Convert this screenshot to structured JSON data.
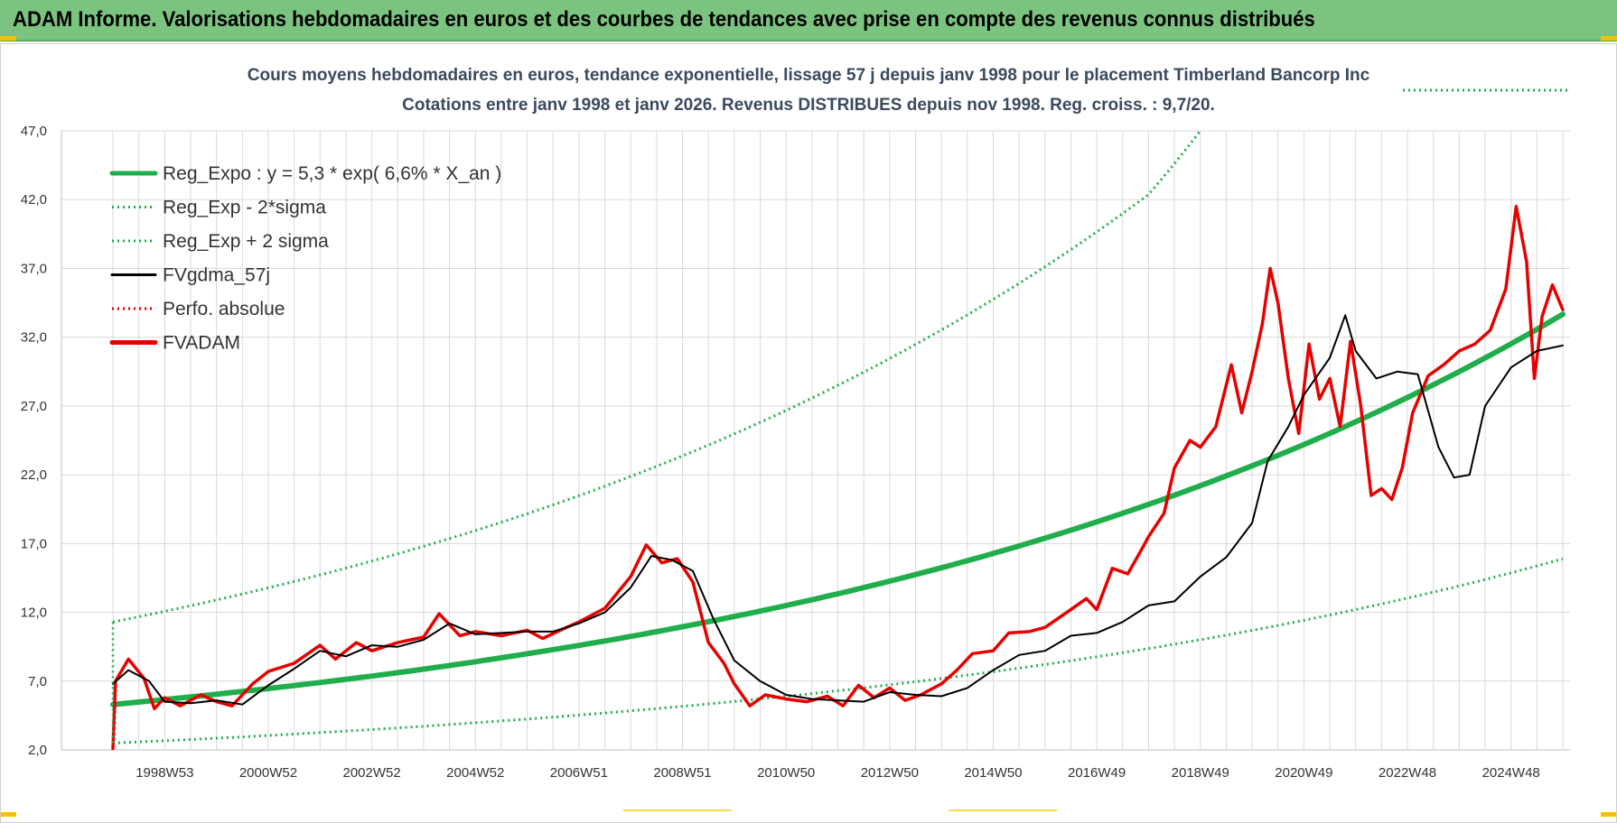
{
  "header": {
    "title": "ADAM Informe. Valorisations hebdomadaires en euros et des courbes de tendances avec prise en compte des revenus connus distribués"
  },
  "colors": {
    "banner": "#7ac47f",
    "reg_expo": "#1fae4b",
    "sigma": "#1fae4b",
    "fvgdma": "#000000",
    "perfo": "#e00000",
    "fvadam": "#e60000",
    "grid": "#d9d9d9"
  },
  "chart_data": {
    "type": "line",
    "title": "Cours moyens hebdomadaires en euros, tendance exponentielle, lissage 57 j depuis janv 1998 pour le placement Timberland Bancorp Inc",
    "subtitle": "Cotations entre janv 1998 et janv 2026. Revenus DISTRIBUES depuis nov 1998. Reg. croiss. : 9,7/20.",
    "xlabel": "",
    "ylabel": "",
    "x_range_years": [
      1998.0,
      2026.0
    ],
    "ylim": [
      2.0,
      47.0
    ],
    "y_ticks": [
      "2,0",
      "7,0",
      "12,0",
      "17,0",
      "22,0",
      "27,0",
      "32,0",
      "37,0",
      "42,0",
      "47,0"
    ],
    "y_tick_values": [
      2,
      7,
      12,
      17,
      22,
      27,
      32,
      37,
      42,
      47
    ],
    "x_ticks": [
      "1998W53",
      "2000W52",
      "2002W52",
      "2004W52",
      "2006W51",
      "2008W51",
      "2010W50",
      "2012W50",
      "2014W50",
      "2016W49",
      "2018W49",
      "2020W49",
      "2022W48",
      "2024W48"
    ],
    "x_tick_years": [
      1999.0,
      2001.0,
      2003.0,
      2005.0,
      2007.0,
      2009.0,
      2011.0,
      2013.0,
      2015.0,
      2017.0,
      2019.0,
      2021.0,
      2023.0,
      2025.0
    ],
    "grid": true,
    "legend_position": "top-left",
    "series": [
      {
        "name": "Reg_Expo : y = 5,3 * exp( 6,6% *  X_an )",
        "style": "solid-thick",
        "points": [
          [
            1998.0,
            5.3
          ],
          [
            2000.0,
            6.05
          ],
          [
            2002.0,
            6.9
          ],
          [
            2004.0,
            7.87
          ],
          [
            2006.0,
            8.99
          ],
          [
            2008.0,
            10.25
          ],
          [
            2010.0,
            11.7
          ],
          [
            2012.0,
            13.35
          ],
          [
            2014.0,
            15.24
          ],
          [
            2016.0,
            17.39
          ],
          [
            2018.0,
            19.85
          ],
          [
            2020.0,
            22.65
          ],
          [
            2022.0,
            25.85
          ],
          [
            2024.0,
            29.5
          ],
          [
            2026.0,
            33.67
          ]
        ]
      },
      {
        "name": "Reg_Exp - 2*sigma",
        "style": "dotted",
        "points": [
          [
            1998.0,
            2.5
          ],
          [
            2000.0,
            2.85
          ],
          [
            2002.0,
            3.26
          ],
          [
            2004.0,
            3.72
          ],
          [
            2006.0,
            4.24
          ],
          [
            2008.0,
            4.84
          ],
          [
            2010.0,
            5.52
          ],
          [
            2012.0,
            6.3
          ],
          [
            2014.0,
            7.19
          ],
          [
            2016.0,
            8.21
          ],
          [
            2018.0,
            9.37
          ],
          [
            2020.0,
            10.69
          ],
          [
            2022.0,
            12.2
          ],
          [
            2024.0,
            13.92
          ],
          [
            2026.0,
            15.89
          ]
        ]
      },
      {
        "name": "Reg_Exp + 2 sigma",
        "style": "dotted",
        "points": [
          [
            1998.0,
            11.3
          ],
          [
            2000.0,
            12.9
          ],
          [
            2002.0,
            14.72
          ],
          [
            2004.0,
            16.8
          ],
          [
            2006.0,
            19.17
          ],
          [
            2008.0,
            21.88
          ],
          [
            2010.0,
            24.97
          ],
          [
            2012.0,
            28.5
          ],
          [
            2014.0,
            32.53
          ],
          [
            2016.0,
            37.12
          ],
          [
            2018.0,
            42.37
          ],
          [
            2019.0,
            47.0
          ]
        ]
      },
      {
        "name": "FVgdma_57j",
        "style": "solid",
        "points": [
          [
            1998.0,
            6.8
          ],
          [
            1998.3,
            7.8
          ],
          [
            1998.7,
            7.0
          ],
          [
            1999.0,
            5.5
          ],
          [
            1999.5,
            5.4
          ],
          [
            2000.0,
            5.6
          ],
          [
            2000.5,
            5.3
          ],
          [
            2001.0,
            6.7
          ],
          [
            2001.5,
            7.9
          ],
          [
            2002.0,
            9.2
          ],
          [
            2002.5,
            8.8
          ],
          [
            2003.0,
            9.6
          ],
          [
            2003.5,
            9.5
          ],
          [
            2004.0,
            10.0
          ],
          [
            2004.5,
            11.2
          ],
          [
            2005.0,
            10.4
          ],
          [
            2005.5,
            10.5
          ],
          [
            2006.0,
            10.6
          ],
          [
            2006.5,
            10.6
          ],
          [
            2007.0,
            11.2
          ],
          [
            2007.5,
            12.0
          ],
          [
            2008.0,
            13.8
          ],
          [
            2008.4,
            16.1
          ],
          [
            2008.8,
            15.8
          ],
          [
            2009.2,
            15.0
          ],
          [
            2009.6,
            11.5
          ],
          [
            2010.0,
            8.5
          ],
          [
            2010.5,
            7.0
          ],
          [
            2011.0,
            6.0
          ],
          [
            2011.5,
            5.7
          ],
          [
            2012.0,
            5.6
          ],
          [
            2012.5,
            5.5
          ],
          [
            2013.0,
            6.2
          ],
          [
            2013.5,
            6.0
          ],
          [
            2014.0,
            5.9
          ],
          [
            2014.5,
            6.5
          ],
          [
            2015.0,
            7.8
          ],
          [
            2015.5,
            8.9
          ],
          [
            2016.0,
            9.2
          ],
          [
            2016.5,
            10.3
          ],
          [
            2017.0,
            10.5
          ],
          [
            2017.5,
            11.3
          ],
          [
            2018.0,
            12.5
          ],
          [
            2018.5,
            12.8
          ],
          [
            2019.0,
            14.6
          ],
          [
            2019.5,
            16.0
          ],
          [
            2020.0,
            18.5
          ],
          [
            2020.3,
            23.0
          ],
          [
            2020.7,
            25.5
          ],
          [
            2021.0,
            27.8
          ],
          [
            2021.5,
            30.5
          ],
          [
            2021.8,
            33.6
          ],
          [
            2022.0,
            31.0
          ],
          [
            2022.4,
            29.0
          ],
          [
            2022.8,
            29.5
          ],
          [
            2023.2,
            29.3
          ],
          [
            2023.6,
            24.0
          ],
          [
            2023.9,
            21.8
          ],
          [
            2024.2,
            22.0
          ],
          [
            2024.5,
            27.0
          ],
          [
            2025.0,
            29.8
          ],
          [
            2025.5,
            31.0
          ],
          [
            2026.0,
            31.4
          ]
        ]
      },
      {
        "name": "Perfo. absolue",
        "style": "dotted",
        "points": []
      },
      {
        "name": "FVADAM",
        "style": "solid-thick",
        "points": [
          [
            1998.0,
            2.1
          ],
          [
            1998.05,
            7.0
          ],
          [
            1998.3,
            8.6
          ],
          [
            1998.6,
            7.2
          ],
          [
            1998.8,
            5.0
          ],
          [
            1999.0,
            5.8
          ],
          [
            1999.3,
            5.2
          ],
          [
            1999.7,
            6.0
          ],
          [
            2000.0,
            5.5
          ],
          [
            2000.3,
            5.2
          ],
          [
            2000.7,
            6.8
          ],
          [
            2001.0,
            7.7
          ],
          [
            2001.5,
            8.3
          ],
          [
            2002.0,
            9.6
          ],
          [
            2002.3,
            8.6
          ],
          [
            2002.7,
            9.8
          ],
          [
            2003.0,
            9.2
          ],
          [
            2003.5,
            9.8
          ],
          [
            2004.0,
            10.2
          ],
          [
            2004.3,
            11.9
          ],
          [
            2004.7,
            10.3
          ],
          [
            2005.0,
            10.6
          ],
          [
            2005.5,
            10.3
          ],
          [
            2006.0,
            10.7
          ],
          [
            2006.3,
            10.1
          ],
          [
            2006.7,
            10.8
          ],
          [
            2007.0,
            11.3
          ],
          [
            2007.5,
            12.3
          ],
          [
            2008.0,
            14.6
          ],
          [
            2008.3,
            16.9
          ],
          [
            2008.6,
            15.6
          ],
          [
            2008.9,
            15.9
          ],
          [
            2009.2,
            14.2
          ],
          [
            2009.5,
            9.8
          ],
          [
            2009.8,
            8.3
          ],
          [
            2010.0,
            6.8
          ],
          [
            2010.3,
            5.2
          ],
          [
            2010.6,
            6.0
          ],
          [
            2011.0,
            5.7
          ],
          [
            2011.4,
            5.5
          ],
          [
            2011.8,
            5.9
          ],
          [
            2012.1,
            5.2
          ],
          [
            2012.4,
            6.7
          ],
          [
            2012.7,
            5.8
          ],
          [
            2013.0,
            6.5
          ],
          [
            2013.3,
            5.6
          ],
          [
            2013.6,
            6.0
          ],
          [
            2014.0,
            6.8
          ],
          [
            2014.3,
            7.8
          ],
          [
            2014.6,
            9.0
          ],
          [
            2015.0,
            9.2
          ],
          [
            2015.3,
            10.5
          ],
          [
            2015.7,
            10.6
          ],
          [
            2016.0,
            10.9
          ],
          [
            2016.5,
            12.2
          ],
          [
            2016.8,
            13.0
          ],
          [
            2017.0,
            12.2
          ],
          [
            2017.3,
            15.2
          ],
          [
            2017.6,
            14.8
          ],
          [
            2017.9,
            16.8
          ],
          [
            2018.0,
            17.5
          ],
          [
            2018.3,
            19.2
          ],
          [
            2018.5,
            22.5
          ],
          [
            2018.8,
            24.5
          ],
          [
            2019.0,
            24.0
          ],
          [
            2019.3,
            25.5
          ],
          [
            2019.6,
            30.0
          ],
          [
            2019.8,
            26.5
          ],
          [
            2020.0,
            29.5
          ],
          [
            2020.2,
            33.0
          ],
          [
            2020.35,
            37.0
          ],
          [
            2020.5,
            34.5
          ],
          [
            2020.7,
            29.0
          ],
          [
            2020.9,
            25.0
          ],
          [
            2021.1,
            31.5
          ],
          [
            2021.3,
            27.5
          ],
          [
            2021.5,
            29.0
          ],
          [
            2021.7,
            25.5
          ],
          [
            2021.9,
            31.7
          ],
          [
            2022.1,
            27.0
          ],
          [
            2022.3,
            20.5
          ],
          [
            2022.5,
            21.0
          ],
          [
            2022.7,
            20.2
          ],
          [
            2022.9,
            22.5
          ],
          [
            2023.1,
            26.5
          ],
          [
            2023.4,
            29.2
          ],
          [
            2023.7,
            30.0
          ],
          [
            2024.0,
            31.0
          ],
          [
            2024.3,
            31.5
          ],
          [
            2024.6,
            32.5
          ],
          [
            2024.9,
            35.5
          ],
          [
            2025.1,
            41.5
          ],
          [
            2025.3,
            37.5
          ],
          [
            2025.45,
            29.0
          ],
          [
            2025.6,
            33.5
          ],
          [
            2025.8,
            35.8
          ],
          [
            2026.0,
            34.0
          ]
        ]
      }
    ]
  },
  "legend": [
    {
      "label": "Reg_Expo : y = 5,3 * exp( 6,6% *  X_an )",
      "color": "#1fae4b",
      "style": "solid-thick"
    },
    {
      "label": "Reg_Exp - 2*sigma",
      "color": "#1fae4b",
      "style": "dotted"
    },
    {
      "label": "Reg_Exp + 2 sigma",
      "color": "#1fae4b",
      "style": "dotted"
    },
    {
      "label": "FVgdma_57j",
      "color": "#000000",
      "style": "solid"
    },
    {
      "label": "Perfo. absolue",
      "color": "#e00000",
      "style": "dotted"
    },
    {
      "label": "FVADAM",
      "color": "#e60000",
      "style": "solid-thick"
    }
  ]
}
